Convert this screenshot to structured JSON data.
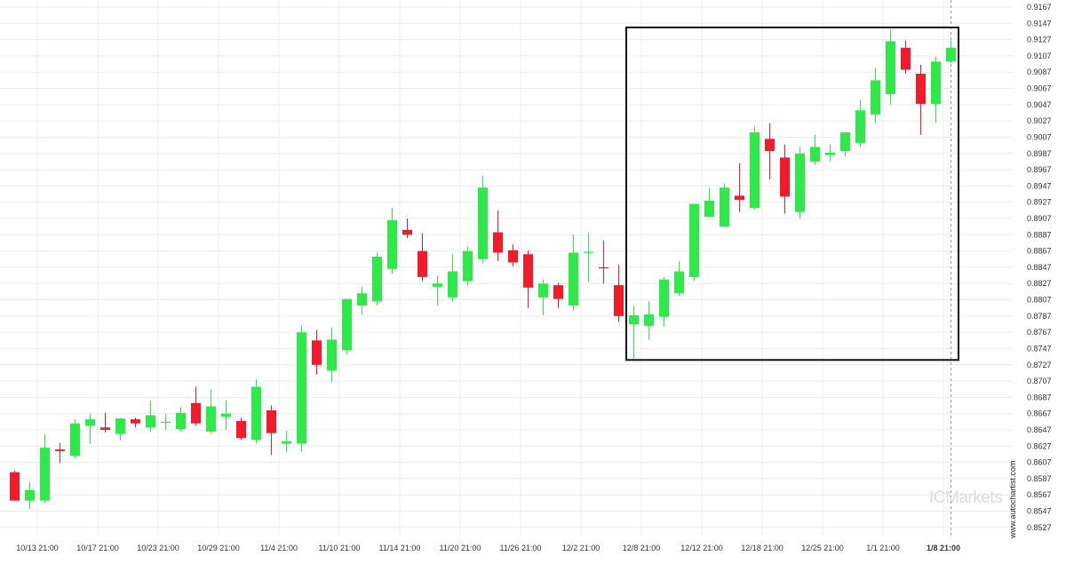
{
  "brand": {
    "watermark": "ICMarkets",
    "site": "www.autochartist.com"
  },
  "colors": {
    "up": "#2fe84a",
    "down": "#f21b2a",
    "wick_up": "#2fe84a",
    "wick_down": "#f21b2a",
    "box": "#111111",
    "grid": "#ececec",
    "cursor": "#9a9a9a"
  },
  "chart_data": {
    "type": "candlestick",
    "ylim": [
      0.8517,
      0.9167
    ],
    "y_ticks": [
      "0.9167",
      "0.9147",
      "0.9127",
      "0.9107",
      "0.9087",
      "0.9067",
      "0.9047",
      "0.9027",
      "0.9007",
      "0.8987",
      "0.8967",
      "0.8947",
      "0.8927",
      "0.8907",
      "0.8887",
      "0.8867",
      "0.8847",
      "0.8827",
      "0.8807",
      "0.8787",
      "0.8767",
      "0.8747",
      "0.8727",
      "0.8707",
      "0.8687",
      "0.8667",
      "0.8647",
      "0.8627",
      "0.8607",
      "0.8587",
      "0.8567",
      "0.8547",
      "0.8527"
    ],
    "x_ticks": [
      {
        "index": 1.5,
        "label": "10/13 21:00"
      },
      {
        "index": 5.5,
        "label": "10/17 21:00"
      },
      {
        "index": 9.5,
        "label": "10/23 21:00"
      },
      {
        "index": 13.5,
        "label": "10/29 21:00"
      },
      {
        "index": 17.5,
        "label": "11/4 21:00"
      },
      {
        "index": 21.5,
        "label": "11/10 21:00"
      },
      {
        "index": 25.5,
        "label": "11/14 21:00"
      },
      {
        "index": 29.5,
        "label": "11/20 21:00"
      },
      {
        "index": 33.5,
        "label": "11/26 21:00"
      },
      {
        "index": 37.5,
        "label": "12/2 21:00"
      },
      {
        "index": 41.5,
        "label": "12/8 21:00"
      },
      {
        "index": 45.5,
        "label": "12/12 21:00"
      },
      {
        "index": 49.5,
        "label": "12/18 21:00"
      },
      {
        "index": 53.5,
        "label": "12/25 21:00"
      },
      {
        "index": 57.5,
        "label": "1/1 21:00"
      },
      {
        "index": 61.5,
        "label": "1/8 21:00",
        "bold": true
      }
    ],
    "candles": [
      {
        "o": 0.8595,
        "h": 0.8597,
        "l": 0.856,
        "c": 0.856
      },
      {
        "o": 0.856,
        "h": 0.8583,
        "l": 0.855,
        "c": 0.8573
      },
      {
        "o": 0.856,
        "h": 0.8642,
        "l": 0.8557,
        "c": 0.8625
      },
      {
        "o": 0.8623,
        "h": 0.8631,
        "l": 0.8606,
        "c": 0.8621
      },
      {
        "o": 0.8615,
        "h": 0.866,
        "l": 0.8612,
        "c": 0.8655
      },
      {
        "o": 0.8652,
        "h": 0.8667,
        "l": 0.863,
        "c": 0.866
      },
      {
        "o": 0.865,
        "h": 0.8668,
        "l": 0.8644,
        "c": 0.8647
      },
      {
        "o": 0.8642,
        "h": 0.8662,
        "l": 0.8634,
        "c": 0.8661
      },
      {
        "o": 0.866,
        "h": 0.8662,
        "l": 0.865,
        "c": 0.8655
      },
      {
        "o": 0.865,
        "h": 0.8683,
        "l": 0.8645,
        "c": 0.8665
      },
      {
        "o": 0.8656,
        "h": 0.8667,
        "l": 0.8647,
        "c": 0.8657
      },
      {
        "o": 0.8648,
        "h": 0.8675,
        "l": 0.8645,
        "c": 0.8668
      },
      {
        "o": 0.868,
        "h": 0.87,
        "l": 0.8652,
        "c": 0.8655
      },
      {
        "o": 0.8645,
        "h": 0.8697,
        "l": 0.8642,
        "c": 0.8676
      },
      {
        "o": 0.8663,
        "h": 0.8683,
        "l": 0.8647,
        "c": 0.8667
      },
      {
        "o": 0.8658,
        "h": 0.8662,
        "l": 0.8635,
        "c": 0.8637
      },
      {
        "o": 0.8635,
        "h": 0.8709,
        "l": 0.863,
        "c": 0.87
      },
      {
        "o": 0.8671,
        "h": 0.8677,
        "l": 0.8616,
        "c": 0.8643
      },
      {
        "o": 0.863,
        "h": 0.8646,
        "l": 0.862,
        "c": 0.8633
      },
      {
        "o": 0.863,
        "h": 0.8775,
        "l": 0.862,
        "c": 0.8767
      },
      {
        "o": 0.8757,
        "h": 0.877,
        "l": 0.8715,
        "c": 0.8727
      },
      {
        "o": 0.872,
        "h": 0.8773,
        "l": 0.8706,
        "c": 0.8758
      },
      {
        "o": 0.8745,
        "h": 0.8808,
        "l": 0.874,
        "c": 0.8808
      },
      {
        "o": 0.88,
        "h": 0.8823,
        "l": 0.8789,
        "c": 0.8815
      },
      {
        "o": 0.8805,
        "h": 0.8865,
        "l": 0.88,
        "c": 0.886
      },
      {
        "o": 0.8845,
        "h": 0.892,
        "l": 0.8839,
        "c": 0.8905
      },
      {
        "o": 0.8893,
        "h": 0.8907,
        "l": 0.8883,
        "c": 0.8887
      },
      {
        "o": 0.8867,
        "h": 0.8889,
        "l": 0.883,
        "c": 0.8835
      },
      {
        "o": 0.8823,
        "h": 0.8837,
        "l": 0.88,
        "c": 0.8827
      },
      {
        "o": 0.881,
        "h": 0.8863,
        "l": 0.8805,
        "c": 0.8842
      },
      {
        "o": 0.883,
        "h": 0.8873,
        "l": 0.8825,
        "c": 0.8867
      },
      {
        "o": 0.8857,
        "h": 0.896,
        "l": 0.8852,
        "c": 0.8945
      },
      {
        "o": 0.889,
        "h": 0.8917,
        "l": 0.8855,
        "c": 0.8865
      },
      {
        "o": 0.8868,
        "h": 0.8875,
        "l": 0.8848,
        "c": 0.8853
      },
      {
        "o": 0.8863,
        "h": 0.8868,
        "l": 0.8797,
        "c": 0.8822
      },
      {
        "o": 0.881,
        "h": 0.8832,
        "l": 0.8788,
        "c": 0.8827
      },
      {
        "o": 0.8825,
        "h": 0.8828,
        "l": 0.8797,
        "c": 0.8808
      },
      {
        "o": 0.88,
        "h": 0.8887,
        "l": 0.8794,
        "c": 0.8865
      },
      {
        "o": 0.8866,
        "h": 0.8889,
        "l": 0.8829,
        "c": 0.8866
      },
      {
        "o": 0.8847,
        "h": 0.888,
        "l": 0.8827,
        "c": 0.8846
      },
      {
        "o": 0.8825,
        "h": 0.885,
        "l": 0.878,
        "c": 0.8787
      },
      {
        "o": 0.8777,
        "h": 0.88,
        "l": 0.8735,
        "c": 0.8788
      },
      {
        "o": 0.8775,
        "h": 0.8805,
        "l": 0.8758,
        "c": 0.8789
      },
      {
        "o": 0.8786,
        "h": 0.8835,
        "l": 0.8774,
        "c": 0.8832
      },
      {
        "o": 0.8815,
        "h": 0.8854,
        "l": 0.8812,
        "c": 0.8842
      },
      {
        "o": 0.8835,
        "h": 0.8925,
        "l": 0.883,
        "c": 0.8925
      },
      {
        "o": 0.8909,
        "h": 0.8945,
        "l": 0.8909,
        "c": 0.8929
      },
      {
        "o": 0.8897,
        "h": 0.895,
        "l": 0.8897,
        "c": 0.8945
      },
      {
        "o": 0.8935,
        "h": 0.8975,
        "l": 0.8915,
        "c": 0.893
      },
      {
        "o": 0.892,
        "h": 0.902,
        "l": 0.8918,
        "c": 0.9013
      },
      {
        "o": 0.9005,
        "h": 0.9024,
        "l": 0.8955,
        "c": 0.899
      },
      {
        "o": 0.8982,
        "h": 0.8998,
        "l": 0.8913,
        "c": 0.8934
      },
      {
        "o": 0.8915,
        "h": 0.8995,
        "l": 0.8907,
        "c": 0.8987
      },
      {
        "o": 0.8977,
        "h": 0.901,
        "l": 0.8973,
        "c": 0.8995
      },
      {
        "o": 0.8985,
        "h": 0.8998,
        "l": 0.8977,
        "c": 0.8988
      },
      {
        "o": 0.899,
        "h": 0.9013,
        "l": 0.8983,
        "c": 0.9013
      },
      {
        "o": 0.9,
        "h": 0.9053,
        "l": 0.8995,
        "c": 0.904
      },
      {
        "o": 0.9035,
        "h": 0.9092,
        "l": 0.9025,
        "c": 0.9077
      },
      {
        "o": 0.906,
        "h": 0.914,
        "l": 0.9047,
        "c": 0.9125
      },
      {
        "o": 0.9117,
        "h": 0.9126,
        "l": 0.9085,
        "c": 0.909
      },
      {
        "o": 0.9085,
        "h": 0.9096,
        "l": 0.901,
        "c": 0.9048
      },
      {
        "o": 0.9048,
        "h": 0.9106,
        "l": 0.9025,
        "c": 0.91
      },
      {
        "o": 0.91,
        "h": 0.9126,
        "l": 0.9098,
        "c": 0.9117
      }
    ],
    "pattern_box": {
      "start_index": 40.5,
      "end_index": 62.5,
      "top": 0.9142,
      "bottom": 0.8733
    },
    "last_index_marker": 62
  }
}
